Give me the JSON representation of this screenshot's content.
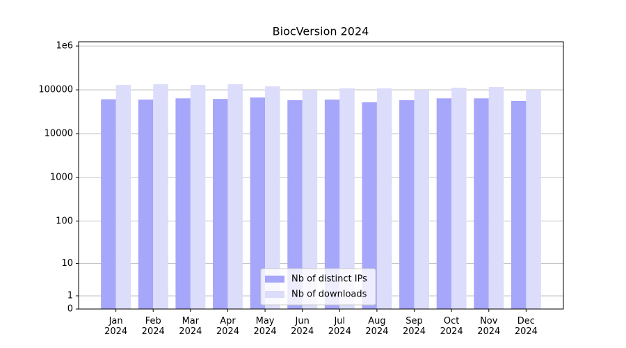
{
  "chart_data": {
    "type": "bar",
    "title": "BiocVersion 2024",
    "scale": "log1p",
    "grid": true,
    "legend": "lower center",
    "categories": [
      "Jan\n2024",
      "Feb\n2024",
      "Mar\n2024",
      "Apr\n2024",
      "May\n2024",
      "Jun\n2024",
      "Jul\n2024",
      "Aug\n2024",
      "Sep\n2024",
      "Oct\n2024",
      "Nov\n2024",
      "Dec\n2024"
    ],
    "series": [
      {
        "name": "Nb of distinct IPs",
        "color": "#a6a6fb",
        "values": [
          61000,
          60000,
          64000,
          62000,
          67000,
          58000,
          60000,
          52000,
          58000,
          64000,
          64000,
          56000
        ]
      },
      {
        "name": "Nb of downloads",
        "color": "#dcdcfb",
        "values": [
          129000,
          134000,
          129000,
          134000,
          120000,
          100000,
          108000,
          108000,
          100000,
          112000,
          116000,
          100000
        ]
      }
    ],
    "ylim": [
      0,
      1250000
    ],
    "yticks": [
      0,
      1,
      10,
      100,
      1000,
      10000,
      100000,
      {
        "value": 1000000,
        "label": "1e6"
      }
    ]
  }
}
